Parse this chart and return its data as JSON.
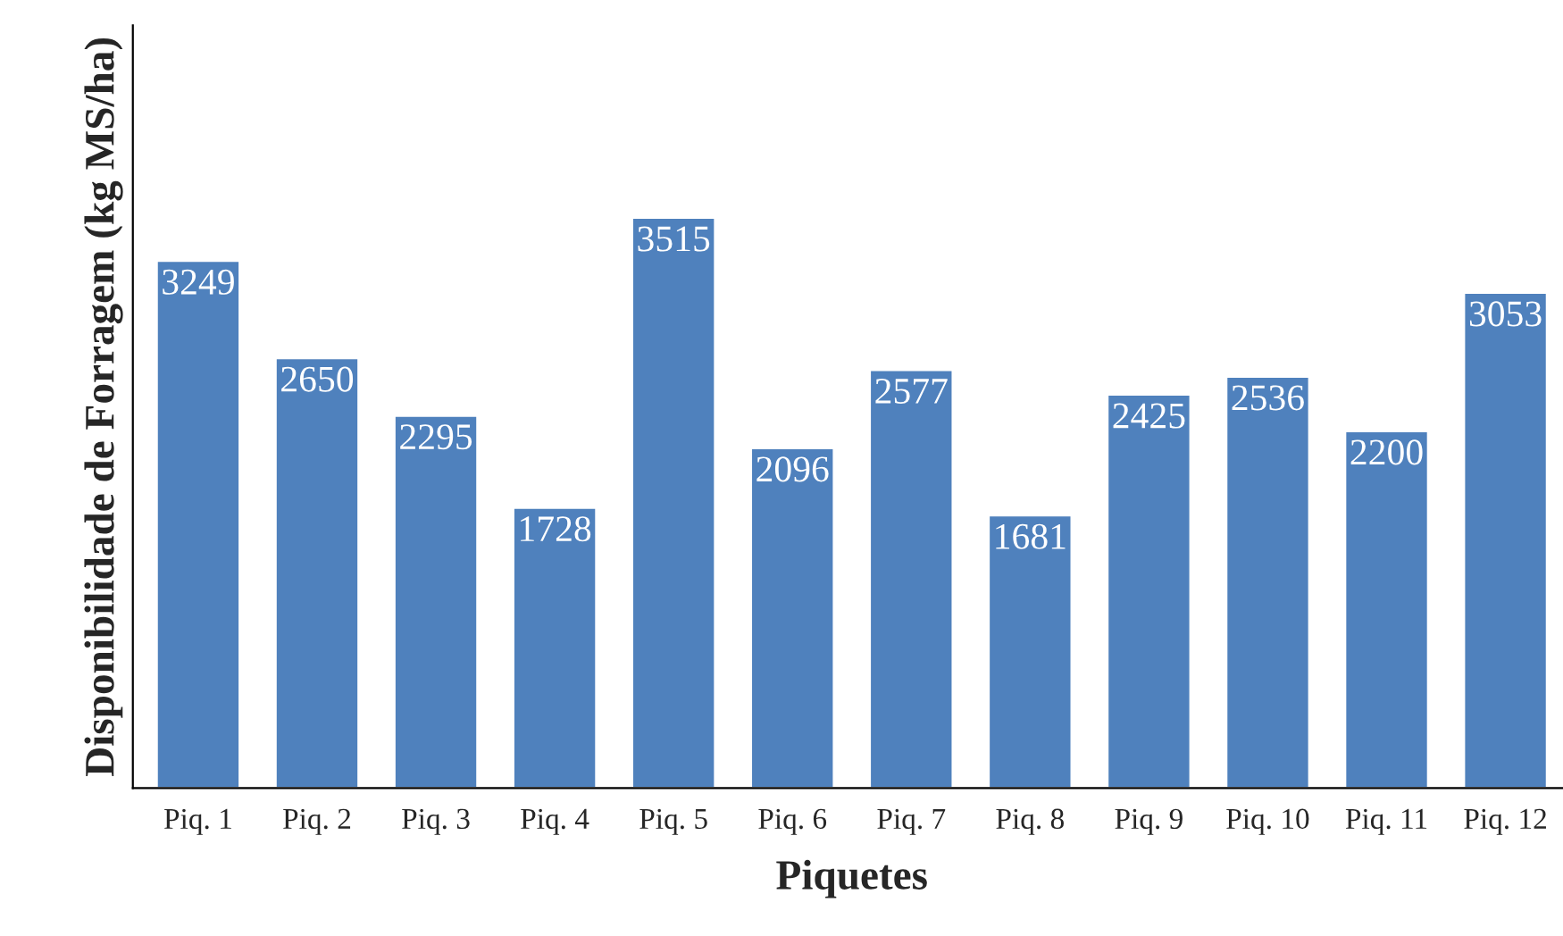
{
  "chart_data": {
    "type": "bar",
    "xlabel": "Piquetes",
    "ylabel": "Disponibilidade de Forragem (kg MS/ha)",
    "categories": [
      "Piq. 1",
      "Piq. 2",
      "Piq. 3",
      "Piq. 4",
      "Piq. 5",
      "Piq. 6",
      "Piq. 7",
      "Piq. 8",
      "Piq. 9",
      "Piq. 10",
      "Piq. 11",
      "Piq. 12"
    ],
    "values": [
      3249,
      2650,
      2295,
      1728,
      3515,
      2096,
      2577,
      1681,
      2425,
      2536,
      2200,
      3053
    ],
    "color": "#4f81bd",
    "ylim": [
      0,
      4700
    ],
    "data_labels": true,
    "grid": false,
    "legend": false,
    "tick_labels": "x"
  }
}
